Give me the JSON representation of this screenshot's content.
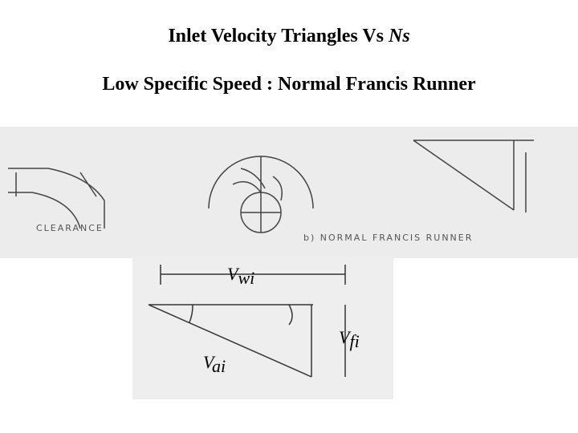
{
  "header": {
    "title": "Inlet Velocity Triangles Vs",
    "title_italic": "Ns",
    "subtitle": "Low Specific Speed : Normal Francis Runner"
  },
  "scan": {
    "clearance": "CLEARANCE",
    "caption": "b) NORMAL FRANCIS RUNNER"
  },
  "labels": [
    {
      "main": "V",
      "sub": "wi"
    },
    {
      "main": "V",
      "sub": "fi"
    },
    {
      "main": "V",
      "sub": "ai"
    }
  ]
}
